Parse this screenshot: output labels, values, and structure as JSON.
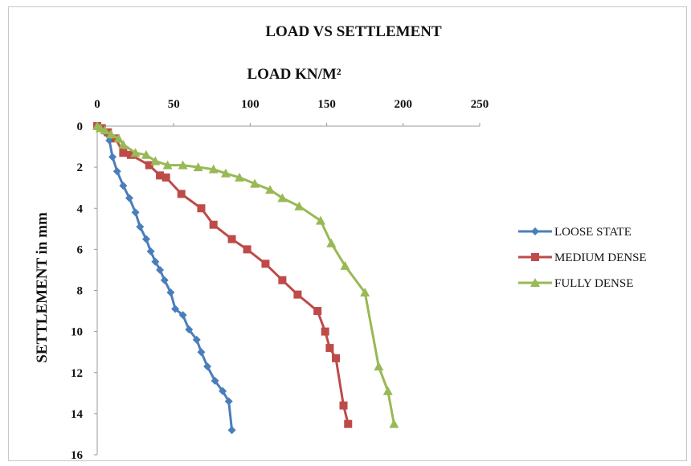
{
  "chart_data": {
    "type": "scatter",
    "title": "LOAD VS SETTLEMENT",
    "xlabel": "LOAD KN/M²",
    "ylabel": "SETTLEMENT in mm",
    "xlim": [
      0,
      250
    ],
    "ylim": [
      0,
      16
    ],
    "y_inverted": true,
    "x_axis_position": "top",
    "x_ticks": [
      "0",
      "50",
      "100",
      "150",
      "200",
      "250"
    ],
    "y_ticks": [
      "0",
      "2",
      "4",
      "6",
      "8",
      "10",
      "12",
      "14",
      "16"
    ],
    "grid": false,
    "legend_position": "right",
    "series": [
      {
        "name": "LOOSE STATE",
        "color": "#4a7ebb",
        "marker": "diamond",
        "points": [
          [
            0,
            0
          ],
          [
            2,
            0.1
          ],
          [
            5,
            0.3
          ],
          [
            8,
            0.7
          ],
          [
            10,
            1.5
          ],
          [
            13,
            2.2
          ],
          [
            17,
            2.9
          ],
          [
            21,
            3.5
          ],
          [
            25,
            4.2
          ],
          [
            28,
            4.9
          ],
          [
            32,
            5.5
          ],
          [
            35,
            6.1
          ],
          [
            38,
            6.6
          ],
          [
            41,
            7.0
          ],
          [
            44,
            7.5
          ],
          [
            48,
            8.1
          ],
          [
            51,
            8.9
          ],
          [
            56,
            9.2
          ],
          [
            60,
            9.9
          ],
          [
            65,
            10.4
          ],
          [
            68,
            11.0
          ],
          [
            72,
            11.7
          ],
          [
            77,
            12.4
          ],
          [
            82,
            12.9
          ],
          [
            86,
            13.4
          ],
          [
            88,
            14.8
          ]
        ]
      },
      {
        "name": "MEDIUM DENSE",
        "color": "#be4b48",
        "marker": "square",
        "points": [
          [
            0,
            0
          ],
          [
            3,
            0.1
          ],
          [
            7,
            0.3
          ],
          [
            12,
            0.6
          ],
          [
            17,
            1.3
          ],
          [
            22,
            1.4
          ],
          [
            34,
            1.9
          ],
          [
            41,
            2.4
          ],
          [
            45,
            2.5
          ],
          [
            55,
            3.3
          ],
          [
            68,
            4.0
          ],
          [
            76,
            4.8
          ],
          [
            88,
            5.5
          ],
          [
            98,
            6.0
          ],
          [
            110,
            6.7
          ],
          [
            121,
            7.5
          ],
          [
            131,
            8.2
          ],
          [
            144,
            9.0
          ],
          [
            149,
            10.0
          ],
          [
            152,
            10.8
          ],
          [
            156,
            11.3
          ],
          [
            161,
            13.6
          ],
          [
            164,
            14.5
          ]
        ]
      },
      {
        "name": "FULLY DENSE",
        "color": "#98b954",
        "marker": "triangle",
        "points": [
          [
            0,
            0
          ],
          [
            2,
            0.1
          ],
          [
            5,
            0.2
          ],
          [
            9,
            0.4
          ],
          [
            14,
            0.6
          ],
          [
            17,
            0.9
          ],
          [
            25,
            1.3
          ],
          [
            32,
            1.4
          ],
          [
            38,
            1.7
          ],
          [
            46,
            1.9
          ],
          [
            56,
            1.9
          ],
          [
            66,
            2.0
          ],
          [
            76,
            2.1
          ],
          [
            84,
            2.3
          ],
          [
            93,
            2.5
          ],
          [
            103,
            2.8
          ],
          [
            113,
            3.1
          ],
          [
            121,
            3.5
          ],
          [
            132,
            3.9
          ],
          [
            146,
            4.6
          ],
          [
            153,
            5.7
          ],
          [
            162,
            6.8
          ],
          [
            175,
            8.1
          ],
          [
            184,
            11.7
          ],
          [
            190,
            12.9
          ],
          [
            194,
            14.5
          ]
        ]
      }
    ]
  }
}
